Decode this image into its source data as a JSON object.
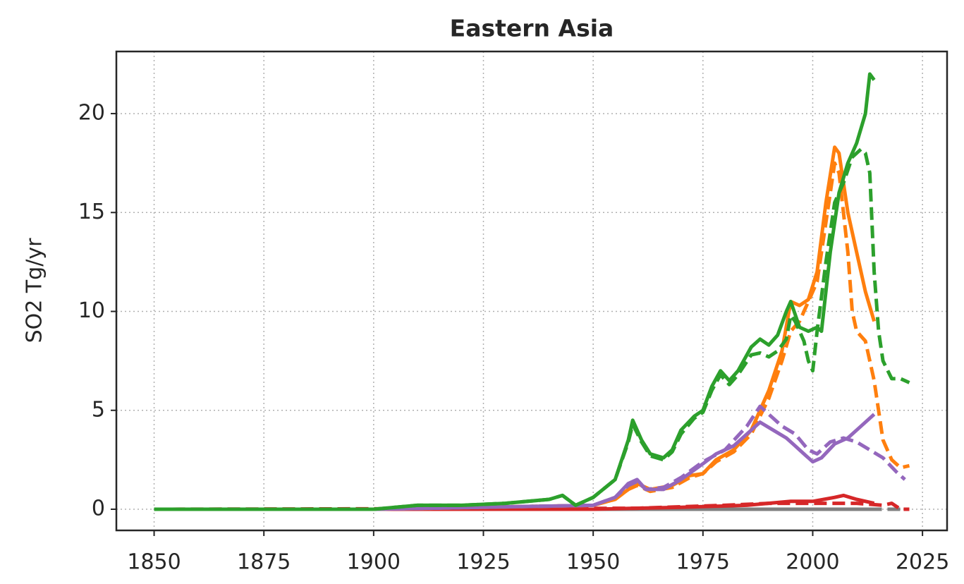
{
  "chart_data": {
    "type": "line",
    "title": "Eastern Asia",
    "y_label": "SO2 Tg/yr",
    "xlim": [
      1841.4,
      2030.6
    ],
    "xticks": [
      1850,
      1875,
      1900,
      1925,
      1950,
      1975,
      2000,
      2025
    ],
    "ylim": [
      -1.07,
      23.14
    ],
    "yticks": [
      0,
      5,
      10,
      15,
      20
    ],
    "grid": true,
    "series": [
      {
        "color": "#7f7f7f",
        "linestyle": "solid",
        "x": [
          1850,
          1900,
          1950,
          2000,
          2014
        ],
        "values": [
          0,
          0,
          0,
          0,
          0
        ]
      },
      {
        "color": "#7f7f7f",
        "linestyle": "dashed",
        "x": [
          1850,
          1900,
          1950,
          2000,
          2022
        ],
        "values": [
          0,
          0,
          0,
          0,
          0
        ]
      },
      {
        "color": "#d62728",
        "linestyle": "solid",
        "x": [
          1850,
          1950,
          1970,
          1985,
          1995,
          2000,
          2005,
          2007,
          2010,
          2014
        ],
        "values": [
          0,
          0,
          0.1,
          0.2,
          0.4,
          0.4,
          0.6,
          0.7,
          0.5,
          0.3
        ]
      },
      {
        "color": "#d62728",
        "linestyle": "dashed",
        "x": [
          1850,
          1960,
          1980,
          1990,
          2000,
          2010,
          2016,
          2018,
          2020,
          2022
        ],
        "values": [
          0,
          0.05,
          0.2,
          0.3,
          0.3,
          0.3,
          0.2,
          0.3,
          0,
          0
        ]
      },
      {
        "color": "#ff7f0e",
        "linestyle": "solid",
        "x": [
          1850,
          1900,
          1950,
          1955,
          1958,
          1960,
          1963,
          1968,
          1972,
          1975,
          1978,
          1982,
          1986,
          1990,
          1993,
          1995,
          1997,
          1999,
          2001,
          2003,
          2005,
          2006,
          2008,
          2010,
          2012,
          2014
        ],
        "values": [
          0,
          0,
          0.2,
          0.5,
          1.0,
          1.3,
          1.0,
          1.2,
          1.7,
          1.8,
          2.5,
          3.0,
          4.0,
          6.0,
          8.0,
          10.5,
          10.3,
          10.6,
          12.0,
          15.5,
          18.3,
          18.0,
          15.0,
          13.0,
          11.0,
          9.5
        ]
      },
      {
        "color": "#ff7f0e",
        "linestyle": "dashed",
        "x": [
          1850,
          1900,
          1950,
          1955,
          1958,
          1960,
          1963,
          1968,
          1972,
          1975,
          1978,
          1982,
          1986,
          1990,
          1993,
          1995,
          1997,
          1999,
          2001,
          2003,
          2005,
          2006,
          2008,
          2009,
          2010,
          2012,
          2014,
          2016,
          2018,
          2020,
          2022
        ],
        "values": [
          0,
          0,
          0.2,
          0.5,
          1.0,
          1.2,
          0.9,
          1.1,
          1.6,
          1.8,
          2.4,
          2.9,
          3.8,
          5.6,
          7.5,
          9.0,
          9.5,
          10.5,
          11.5,
          14.5,
          17.5,
          17.0,
          13.0,
          10.0,
          9.0,
          8.5,
          6.5,
          3.5,
          2.5,
          2.1,
          2.2
        ]
      },
      {
        "color": "#9467bd",
        "linestyle": "solid",
        "x": [
          1850,
          1900,
          1950,
          1955,
          1958,
          1960,
          1962,
          1966,
          1970,
          1975,
          1978,
          1982,
          1986,
          1988,
          1991,
          1994,
          1996,
          1998,
          2000,
          2002,
          2005,
          2008,
          2011,
          2014
        ],
        "values": [
          0,
          0,
          0.2,
          0.6,
          1.3,
          1.5,
          1.0,
          1.0,
          1.5,
          2.3,
          2.8,
          3.2,
          4.0,
          4.4,
          4.0,
          3.6,
          3.2,
          2.8,
          2.4,
          2.6,
          3.3,
          3.6,
          4.2,
          4.8
        ]
      },
      {
        "color": "#9467bd",
        "linestyle": "dashed",
        "x": [
          1850,
          1900,
          1950,
          1955,
          1958,
          1960,
          1962,
          1966,
          1970,
          1975,
          1980,
          1985,
          1988,
          1990,
          1993,
          1996,
          1999,
          2001,
          2004,
          2007,
          2010,
          2013,
          2016,
          2019,
          2021
        ],
        "values": [
          0,
          0,
          0.2,
          0.6,
          1.2,
          1.4,
          1.0,
          1.1,
          1.6,
          2.4,
          3.0,
          4.2,
          5.2,
          4.8,
          4.2,
          3.8,
          3.0,
          2.8,
          3.4,
          3.6,
          3.4,
          3.0,
          2.6,
          1.9,
          1.5
        ]
      },
      {
        "color": "#2ca02c",
        "linestyle": "dashed",
        "x": [
          1850,
          1900,
          1910,
          1920,
          1930,
          1940,
          1943,
          1946,
          1950,
          1955,
          1958,
          1959,
          1961,
          1963,
          1966,
          1968,
          1970,
          1973,
          1975,
          1977,
          1979,
          1981,
          1983,
          1986,
          1988,
          1990,
          1992,
          1994,
          1995,
          1996,
          1998,
          1999,
          2000,
          2001,
          2003,
          2005,
          2007,
          2009,
          2011,
          2012,
          2013,
          2014,
          2015,
          2016,
          2018,
          2020,
          2022
        ],
        "values": [
          0,
          0,
          0.2,
          0.2,
          0.3,
          0.5,
          0.7,
          0.2,
          0.6,
          1.5,
          3.4,
          4.3,
          3.4,
          2.7,
          2.5,
          2.9,
          3.8,
          4.6,
          4.9,
          6.0,
          6.8,
          6.3,
          6.8,
          7.8,
          7.9,
          7.7,
          8.0,
          8.6,
          9.8,
          9.5,
          8.5,
          7.5,
          7.0,
          9.0,
          12.5,
          15.5,
          16.5,
          17.8,
          18.2,
          18.0,
          17.0,
          12.0,
          9.0,
          7.5,
          6.6,
          6.6,
          6.4
        ]
      },
      {
        "color": "#2ca02c",
        "linestyle": "solid",
        "x": [
          1850,
          1900,
          1910,
          1920,
          1930,
          1940,
          1943,
          1946,
          1950,
          1955,
          1958,
          1959,
          1961,
          1963,
          1966,
          1968,
          1970,
          1973,
          1975,
          1977,
          1979,
          1981,
          1983,
          1986,
          1988,
          1990,
          1992,
          1994,
          1995,
          1997,
          1999,
          2001,
          2002,
          2004,
          2006,
          2008,
          2010,
          2012,
          2013,
          2014
        ],
        "values": [
          0,
          0,
          0.2,
          0.2,
          0.3,
          0.5,
          0.7,
          0.2,
          0.6,
          1.5,
          3.5,
          4.5,
          3.5,
          2.8,
          2.6,
          3.0,
          4.0,
          4.7,
          5.0,
          6.2,
          7.0,
          6.5,
          7.0,
          8.2,
          8.6,
          8.3,
          8.8,
          10.0,
          10.5,
          9.2,
          9.0,
          9.2,
          9.0,
          13.0,
          16.0,
          17.5,
          18.5,
          20.0,
          22.0,
          21.7
        ]
      }
    ]
  }
}
